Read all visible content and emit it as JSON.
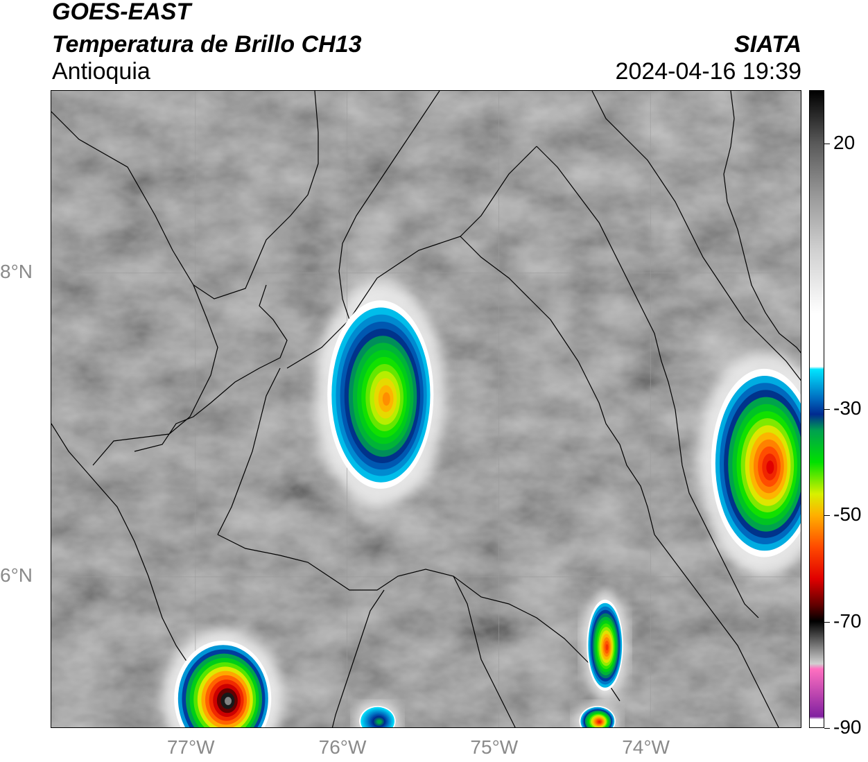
{
  "header": {
    "satellite": "GOES-EAST",
    "product": "Temperatura de Brillo CH13",
    "region": "Antioquia",
    "agency": "SIATA",
    "datetime": "2024-04-16 19:39"
  },
  "map": {
    "lon_range": [
      -77.95,
      -73.0
    ],
    "lat_range": [
      5.0,
      9.2
    ],
    "lon_ticks": [
      {
        "value": -77,
        "label": "77°W"
      },
      {
        "value": -76,
        "label": "76°W"
      },
      {
        "value": -75,
        "label": "75°W"
      },
      {
        "value": -74,
        "label": "74°W"
      }
    ],
    "lat_ticks": [
      {
        "value": 8,
        "label": "8°N"
      },
      {
        "value": 6,
        "label": "6°N"
      }
    ],
    "grid": true,
    "background_color": "#808080",
    "boundary_color": "#000000"
  },
  "colorbar": {
    "range": [
      -90,
      30
    ],
    "tick_labels": [
      {
        "value": 20,
        "label": "20"
      },
      {
        "value": -30,
        "label": "-30"
      },
      {
        "value": -50,
        "label": "-50"
      },
      {
        "value": -70,
        "label": "-70"
      },
      {
        "value": -90,
        "label": "-90"
      }
    ],
    "stops": [
      {
        "value": 30,
        "color": "#000000"
      },
      {
        "value": 20,
        "color": "#5a5a5a"
      },
      {
        "value": 10,
        "color": "#9a9a9a"
      },
      {
        "value": 0,
        "color": "#d0d0d0"
      },
      {
        "value": -12,
        "color": "#ffffff"
      },
      {
        "value": -22,
        "color": "#ffffff"
      },
      {
        "value": -22.5,
        "color": "#00e5ff"
      },
      {
        "value": -28,
        "color": "#006cc0"
      },
      {
        "value": -31,
        "color": "#002a90"
      },
      {
        "value": -34,
        "color": "#00a050"
      },
      {
        "value": -40,
        "color": "#00e000"
      },
      {
        "value": -46,
        "color": "#d8f000"
      },
      {
        "value": -50,
        "color": "#ffb000"
      },
      {
        "value": -56,
        "color": "#ff4a00"
      },
      {
        "value": -62,
        "color": "#e00000"
      },
      {
        "value": -67,
        "color": "#600000"
      },
      {
        "value": -70,
        "color": "#000000"
      },
      {
        "value": -78,
        "color": "#d0d0d0"
      },
      {
        "value": -79,
        "color": "#ff70c0"
      },
      {
        "value": -88,
        "color": "#8020a0"
      },
      {
        "value": -88.5,
        "color": "#ffffff"
      },
      {
        "value": -90,
        "color": "#ffffff"
      }
    ]
  },
  "storm_cells": [
    {
      "name": "cell-central-antioquia",
      "lon": -75.78,
      "lat": 7.2,
      "rx_deg": 0.35,
      "ry_deg": 0.62,
      "core_c": -52
    },
    {
      "name": "cell-choco-south",
      "lon": -76.82,
      "lat": 5.2,
      "rx_deg": 0.32,
      "ry_deg": 0.38,
      "core_c": -75
    },
    {
      "name": "cell-east-santander",
      "lon": -73.25,
      "lat": 6.75,
      "rx_deg": 0.35,
      "ry_deg": 0.62,
      "core_c": -62
    },
    {
      "name": "cell-magdalena-medio",
      "lon": -74.3,
      "lat": 5.55,
      "rx_deg": 0.12,
      "ry_deg": 0.3,
      "core_c": -58
    },
    {
      "name": "cell-south-small-1",
      "lon": -74.35,
      "lat": 5.05,
      "rx_deg": 0.12,
      "ry_deg": 0.1,
      "core_c": -60
    },
    {
      "name": "cell-south-small-2",
      "lon": -75.8,
      "lat": 5.05,
      "rx_deg": 0.12,
      "ry_deg": 0.1,
      "core_c": -35
    }
  ]
}
